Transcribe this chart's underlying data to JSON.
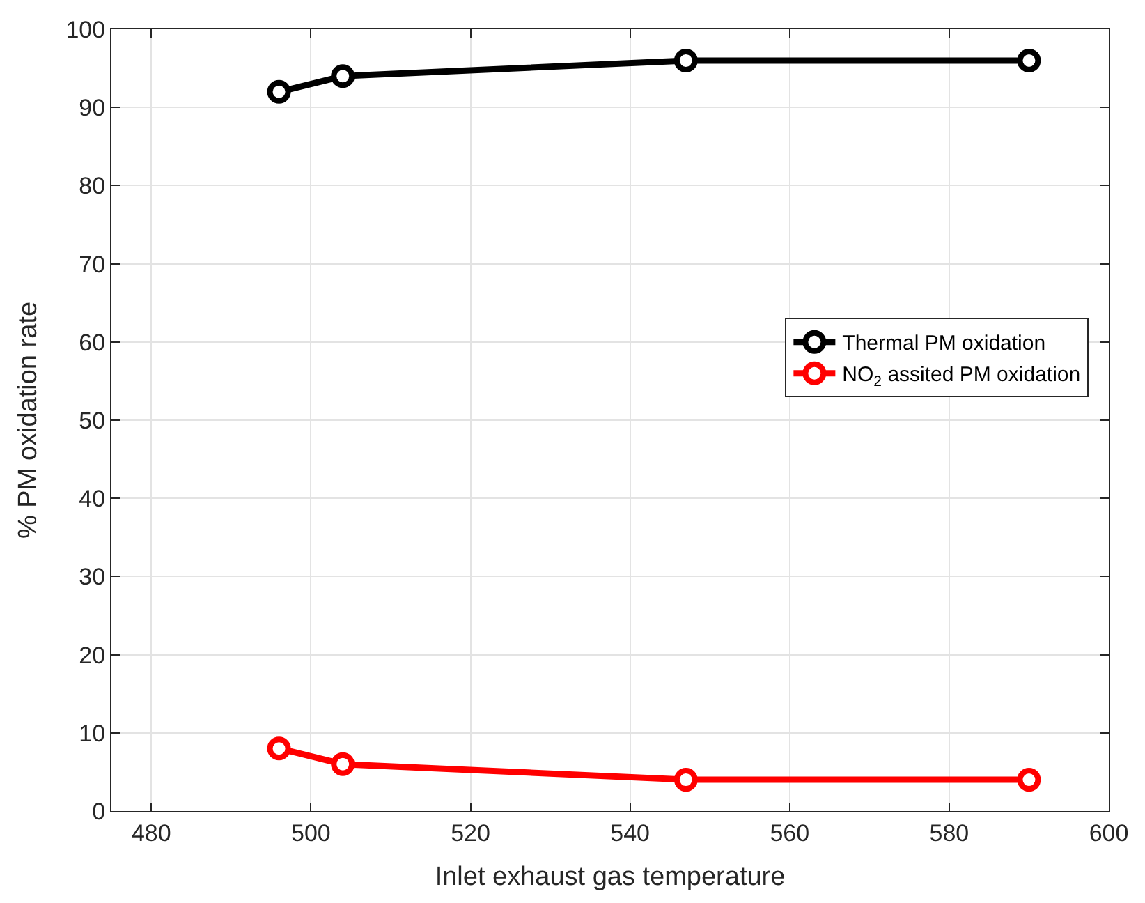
{
  "chart_data": {
    "type": "line",
    "xlabel": "Inlet exhaust gas temperature",
    "ylabel": "% PM oxidation rate",
    "x": [
      496,
      504,
      547,
      590
    ],
    "series": [
      {
        "name": "Thermal PM oxidation",
        "color": "#000000",
        "values": [
          92,
          94,
          96,
          96
        ]
      },
      {
        "name": "NO$_{2}$ assited PM oxidation",
        "color": "#ff0000",
        "values": [
          8,
          6,
          4,
          4
        ]
      }
    ],
    "xlim": [
      475,
      600
    ],
    "xticks": [
      480,
      500,
      520,
      540,
      560,
      580,
      600
    ],
    "ylim": [
      0,
      100
    ],
    "yticks": [
      0,
      10,
      20,
      30,
      40,
      50,
      60,
      70,
      80,
      90,
      100
    ],
    "grid": true,
    "legend": "right",
    "marker": "circle",
    "line_style": "solid"
  }
}
